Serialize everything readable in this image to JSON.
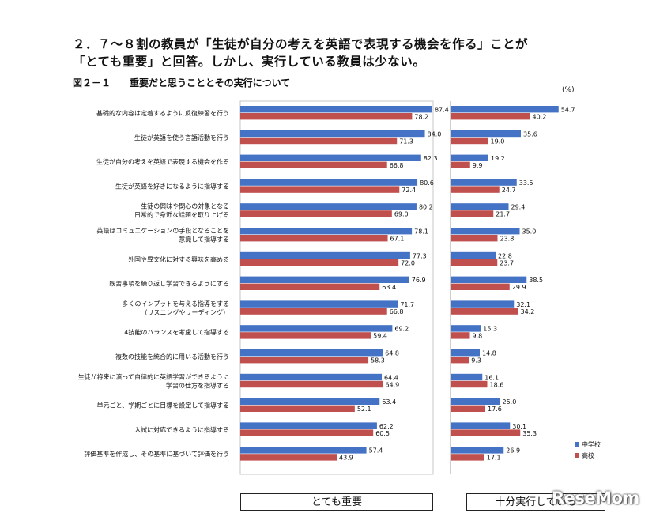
{
  "headline": {
    "line1": "２．７～８割の教員が「生徒が自分の考えを英語で表現する機会を作る」ことが",
    "line2": "「とても重要」と回答。しかし、実行している教員は少ない。"
  },
  "figure_title": "図２－１　　重要だと思うこととその実行について",
  "unit_label": "(%)",
  "footer": {
    "left": "とても重要",
    "right": "十分実行している"
  },
  "logo_text": "ReseMom",
  "colors": {
    "junior_high": "#4472C4",
    "high_school": "#C0504D"
  },
  "chart_data": [
    {
      "type": "bar",
      "orientation": "horizontal",
      "xlabel": "とても重要",
      "categories": [
        [
          "基礎的な内容は定着するように反復練習を行う"
        ],
        [
          "生徒が英語を使う言語活動を行う"
        ],
        [
          "生徒が自分の考えを英語で表現する機会を作る"
        ],
        [
          "生徒が英語を好きになるように指導する"
        ],
        [
          "生徒の興味や関心の対象となる",
          "日常的で身近な話題を取り上げる"
        ],
        [
          "英語はコミュニケーションの手段となることを",
          "意識して指導する"
        ],
        [
          "外国や異文化に対する興味を高める"
        ],
        [
          "既習事項を繰り返し学習できるようにする"
        ],
        [
          "多くのインプットを与える指導をする",
          "（リスニングやリーディング）"
        ],
        [
          "4技能のバランスを考慮して指導する"
        ],
        [
          "複数の技能を統合的に用いる活動を行う"
        ],
        [
          "生徒が将来に渡って自律的に英語学習ができるように",
          "学習の仕方を指導する"
        ],
        [
          "単元ごと、学期ごとに目標を設定して指導する"
        ],
        [
          "入試に対応できるように指導する"
        ],
        [
          "評価基準を作成し、その基準に基づいて評価を行う"
        ]
      ],
      "series": [
        {
          "name": "中学校",
          "values": [
            87.4,
            84.0,
            82.3,
            80.6,
            80.2,
            78.1,
            77.3,
            76.9,
            71.7,
            69.2,
            64.8,
            64.4,
            63.4,
            62.2,
            57.4
          ]
        },
        {
          "name": "高校",
          "values": [
            78.2,
            71.3,
            66.8,
            72.4,
            69.0,
            67.1,
            72.0,
            63.4,
            66.8,
            59.4,
            58.3,
            64.9,
            52.1,
            60.5,
            43.9
          ]
        }
      ],
      "xlim": [
        0,
        100
      ]
    },
    {
      "type": "bar",
      "orientation": "horizontal",
      "xlabel": "十分実行している",
      "series": [
        {
          "name": "中学校",
          "values": [
            54.7,
            35.6,
            19.2,
            33.5,
            29.4,
            35.0,
            22.8,
            38.5,
            32.1,
            15.3,
            14.8,
            16.1,
            25.0,
            30.1,
            26.9
          ]
        },
        {
          "name": "高校",
          "values": [
            40.2,
            19.0,
            9.9,
            24.7,
            21.7,
            23.8,
            23.7,
            29.9,
            34.2,
            9.8,
            9.3,
            18.6,
            17.6,
            35.3,
            17.1
          ]
        }
      ],
      "legend": {
        "position": "right",
        "entries": [
          "中学校",
          "高校"
        ]
      },
      "xlim": [
        0,
        60
      ]
    }
  ]
}
